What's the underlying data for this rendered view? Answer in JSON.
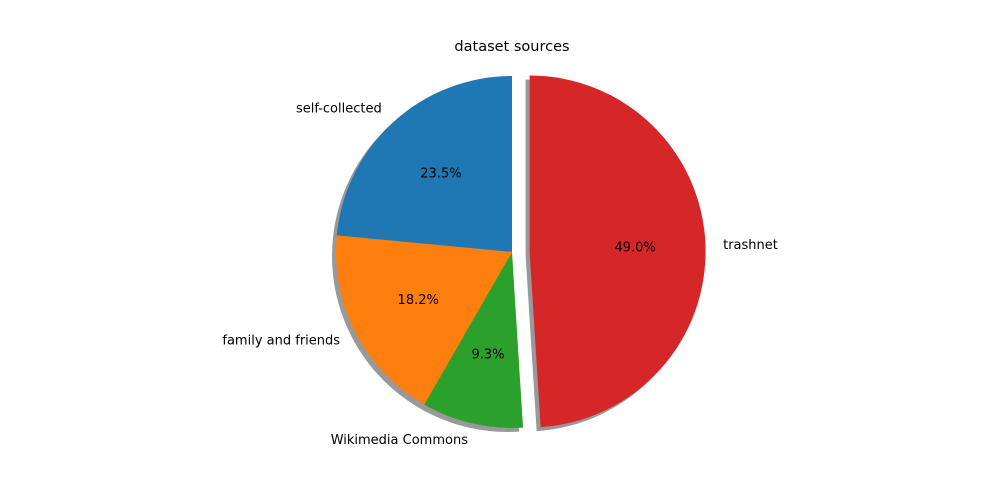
{
  "chart_data": {
    "type": "pie",
    "title": "dataset sources",
    "start_angle_deg": 90,
    "direction": "counterclockwise",
    "shadow": true,
    "slices": [
      {
        "label": "self-collected",
        "value": 23.5,
        "pct_label": "23.5%",
        "color": "#1f77b4",
        "explode": 0
      },
      {
        "label": "family and friends",
        "value": 18.2,
        "pct_label": "18.2%",
        "color": "#ff7f0e",
        "explode": 0
      },
      {
        "label": "Wikimedia Commons",
        "value": 9.3,
        "pct_label": "9.3%",
        "color": "#2ca02c",
        "explode": 0
      },
      {
        "label": "trashnet",
        "value": 49.0,
        "pct_label": "49.0%",
        "color": "#d62728",
        "explode": 0.1
      }
    ]
  }
}
